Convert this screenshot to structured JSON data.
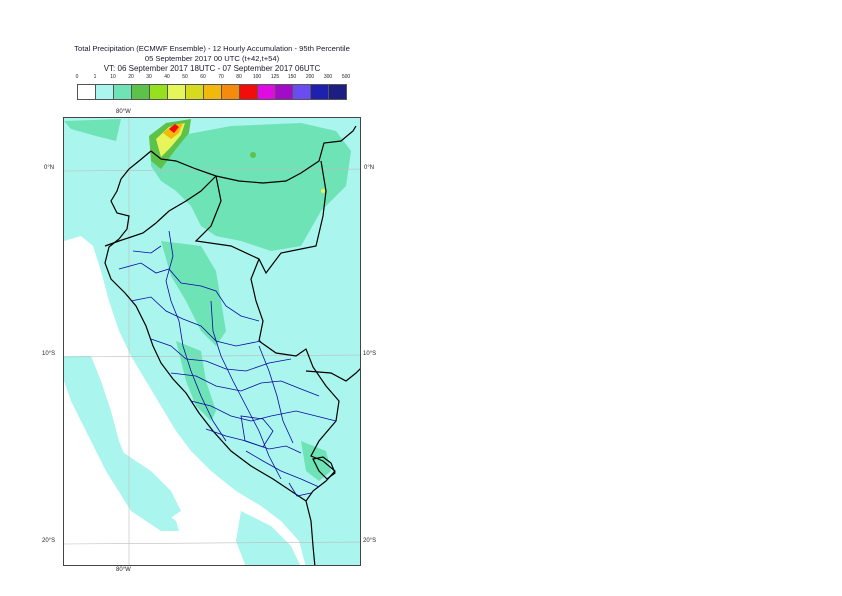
{
  "header": {
    "line1": "Total Precipitation (ECMWF Ensemble) - 12 Hourly Accumulation - 95th Percentile",
    "line2": "05 September 2017 00 UTC (t+42,t+54)",
    "line3": "VT: 06 September 2017 18UTC - 07 September 2017 06UTC"
  },
  "legend": {
    "ticks": [
      "0",
      "1",
      "10",
      "20",
      "30",
      "40",
      "50",
      "60",
      "70",
      "80",
      "100",
      "125",
      "150",
      "200",
      "300",
      "500"
    ],
    "colors": [
      "#ffffff",
      "#aaf5ee",
      "#6ee3b6",
      "#5cc24a",
      "#97e01e",
      "#e6f55a",
      "#d6db1e",
      "#f2b80c",
      "#f58a0c",
      "#f20c0c",
      "#e00be0",
      "#a20cc6",
      "#6a4cf0",
      "#2020b0",
      "#1e1e82",
      "#0d0d4a"
    ]
  },
  "map": {
    "lon_top": "80°W",
    "lon_bottom": "80°W",
    "lat_0_left": "0°N",
    "lat_0_right": "0°N",
    "lat_10_left": "10°S",
    "lat_10_right": "10°S",
    "lat_20_left": "20°S",
    "lat_20_right": "20°S",
    "fill_light": "#aaf5ee",
    "fill_mid": "#6ee3b6",
    "fill_green": "#5cc24a",
    "fill_yellow": "#e6f55a",
    "fill_orange": "#f2b80c",
    "fill_red": "#f20c0c",
    "country_border": "#000000",
    "admin_border": "#0a0aa0"
  }
}
